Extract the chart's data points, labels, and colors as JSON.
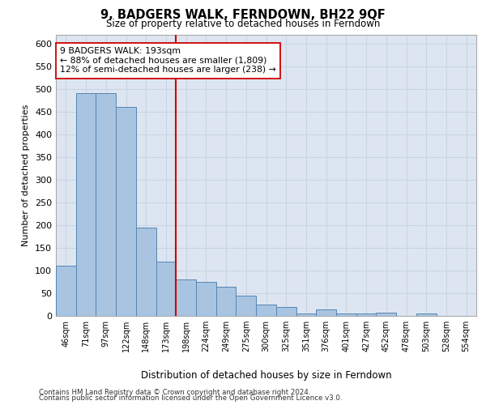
{
  "title": "9, BADGERS WALK, FERNDOWN, BH22 9QF",
  "subtitle": "Size of property relative to detached houses in Ferndown",
  "xlabel": "Distribution of detached houses by size in Ferndown",
  "ylabel": "Number of detached properties",
  "categories": [
    "46sqm",
    "71sqm",
    "97sqm",
    "122sqm",
    "148sqm",
    "173sqm",
    "198sqm",
    "224sqm",
    "249sqm",
    "275sqm",
    "300sqm",
    "325sqm",
    "351sqm",
    "376sqm",
    "401sqm",
    "427sqm",
    "452sqm",
    "478sqm",
    "503sqm",
    "528sqm",
    "554sqm"
  ],
  "values": [
    110,
    490,
    490,
    460,
    195,
    120,
    80,
    75,
    65,
    45,
    25,
    20,
    5,
    15,
    5,
    5,
    8,
    0,
    5,
    0,
    0
  ],
  "bar_color": "#a8c4e0",
  "bar_edge_color": "#5585b5",
  "vline_color": "#cc0000",
  "vline_index": 6,
  "annotation_text": "9 BADGERS WALK: 193sqm\n← 88% of detached houses are smaller (1,809)\n12% of semi-detached houses are larger (238) →",
  "annotation_box_color": "#ffffff",
  "annotation_box_edge": "#cc0000",
  "grid_color": "#c8d4e4",
  "background_color": "#dde6f0",
  "ylim": [
    0,
    620
  ],
  "yticks": [
    0,
    50,
    100,
    150,
    200,
    250,
    300,
    350,
    400,
    450,
    500,
    550,
    600
  ],
  "footer1": "Contains HM Land Registry data © Crown copyright and database right 2024.",
  "footer2": "Contains public sector information licensed under the Open Government Licence v3.0."
}
